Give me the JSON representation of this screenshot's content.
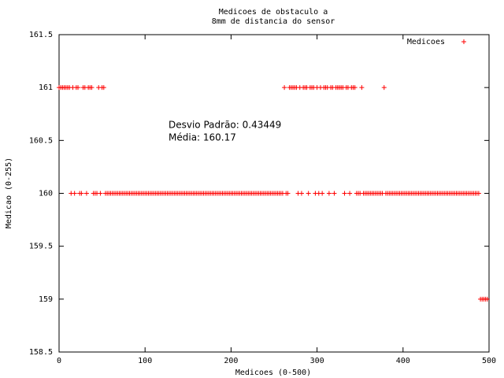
{
  "chart_data": {
    "type": "scatter",
    "title": [
      "Medicoes de obstaculo a",
      "8mm de distancia do sensor"
    ],
    "x_label": "Medicoes (0-500)",
    "y_label": "Medicao (0-255)",
    "annotations": [
      "Desvio Padrão: 0.43449",
      "Média: 160.17"
    ],
    "legend_position": "upper right",
    "grid": false,
    "xlim": [
      0,
      500
    ],
    "ylim": [
      158.5,
      161.5
    ],
    "xticks": [
      0,
      100,
      200,
      300,
      400,
      500
    ],
    "yticks": [
      158.5,
      159,
      159.5,
      160,
      160.5,
      161,
      161.5
    ],
    "series": [
      {
        "name": "Medicoes",
        "color": "#ff0000",
        "x": [
          0,
          2,
          4,
          6,
          8,
          10,
          12,
          14,
          16,
          18,
          20,
          22,
          24,
          26,
          28,
          30,
          32,
          34,
          36,
          38,
          40,
          42,
          44,
          46,
          48,
          50,
          52,
          54,
          56,
          58,
          60,
          62,
          64,
          66,
          68,
          70,
          72,
          74,
          76,
          78,
          80,
          82,
          84,
          86,
          88,
          90,
          92,
          94,
          96,
          98,
          100,
          102,
          104,
          106,
          108,
          110,
          112,
          114,
          116,
          118,
          120,
          122,
          124,
          126,
          128,
          130,
          132,
          134,
          136,
          138,
          140,
          142,
          144,
          146,
          148,
          150,
          152,
          154,
          156,
          158,
          160,
          162,
          164,
          166,
          168,
          170,
          172,
          174,
          176,
          178,
          180,
          182,
          184,
          186,
          188,
          190,
          192,
          194,
          196,
          198,
          200,
          202,
          204,
          206,
          208,
          210,
          212,
          214,
          216,
          218,
          220,
          222,
          224,
          226,
          228,
          230,
          232,
          234,
          236,
          238,
          240,
          242,
          244,
          246,
          248,
          250,
          252,
          254,
          256,
          258,
          260,
          262,
          264,
          266,
          268,
          270,
          272,
          274,
          276,
          278,
          280,
          282,
          284,
          286,
          288,
          290,
          292,
          294,
          296,
          298,
          300,
          302,
          304,
          306,
          308,
          310,
          312,
          314,
          316,
          318,
          320,
          322,
          324,
          326,
          328,
          330,
          332,
          334,
          336,
          338,
          340,
          342,
          344,
          346,
          348,
          350,
          352,
          354,
          356,
          358,
          360,
          362,
          364,
          366,
          368,
          370,
          372,
          374,
          376,
          378,
          380,
          382,
          384,
          386,
          388,
          390,
          392,
          394,
          396,
          398,
          400,
          402,
          404,
          406,
          408,
          410,
          412,
          414,
          416,
          418,
          420,
          422,
          424,
          426,
          428,
          430,
          432,
          434,
          436,
          438,
          440,
          442,
          444,
          446,
          448,
          450,
          452,
          454,
          456,
          458,
          460,
          462,
          464,
          466,
          468,
          470,
          472,
          474,
          476,
          478,
          480,
          482,
          484,
          486,
          488,
          490,
          492,
          494,
          496,
          498
        ],
        "values": [
          161,
          161,
          161,
          161,
          161,
          161,
          161,
          160,
          161,
          160,
          161,
          161,
          160,
          160,
          161,
          161,
          160,
          161,
          161,
          161,
          160,
          160,
          160,
          161,
          160,
          161,
          161,
          160,
          160,
          160,
          160,
          160,
          160,
          160,
          160,
          160,
          160,
          160,
          160,
          160,
          160,
          160,
          160,
          160,
          160,
          160,
          160,
          160,
          160,
          160,
          160,
          160,
          160,
          160,
          160,
          160,
          160,
          160,
          160,
          160,
          160,
          160,
          160,
          160,
          160,
          160,
          160,
          160,
          160,
          160,
          160,
          160,
          160,
          160,
          160,
          160,
          160,
          160,
          160,
          160,
          160,
          160,
          160,
          160,
          160,
          160,
          160,
          160,
          160,
          160,
          160,
          160,
          160,
          160,
          160,
          160,
          160,
          160,
          160,
          160,
          160,
          160,
          160,
          160,
          160,
          160,
          160,
          160,
          160,
          160,
          160,
          160,
          160,
          160,
          160,
          160,
          160,
          160,
          160,
          160,
          160,
          160,
          160,
          160,
          160,
          160,
          160,
          160,
          160,
          160,
          160,
          161,
          160,
          160,
          161,
          161,
          161,
          161,
          161,
          160,
          161,
          160,
          161,
          161,
          161,
          160,
          161,
          161,
          161,
          160,
          161,
          160,
          161,
          160,
          161,
          161,
          161,
          160,
          161,
          161,
          160,
          161,
          161,
          161,
          161,
          161,
          160,
          161,
          161,
          160,
          161,
          161,
          161,
          160,
          160,
          160,
          161,
          160,
          160,
          160,
          160,
          160,
          160,
          160,
          160,
          160,
          160,
          160,
          160,
          161,
          160,
          160,
          160,
          160,
          160,
          160,
          160,
          160,
          160,
          160,
          160,
          160,
          160,
          160,
          160,
          160,
          160,
          160,
          160,
          160,
          160,
          160,
          160,
          160,
          160,
          160,
          160,
          160,
          160,
          160,
          160,
          160,
          160,
          160,
          160,
          160,
          160,
          160,
          160,
          160,
          160,
          160,
          160,
          160,
          160,
          160,
          160,
          160,
          160,
          160,
          160,
          160,
          160,
          160,
          160,
          159,
          159,
          159,
          159,
          159
        ]
      }
    ]
  }
}
